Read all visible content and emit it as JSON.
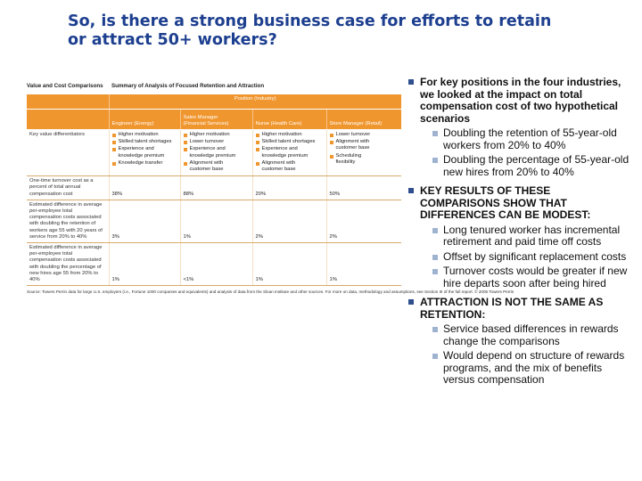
{
  "slide": {
    "title_lines": [
      "So, is there a strong business case for efforts to retain",
      "or attract 50+ workers?"
    ]
  },
  "figure": {
    "section_label": "Value and Cost Comparisons",
    "title": "Summary of Analysis of Focused Retention and Attraction",
    "group_header": "Position (Industry)",
    "columns": [
      {
        "line1": "",
        "line2": "Engineer (Energy)"
      },
      {
        "line1": "Sales Manager",
        "line2": "(Financial Services)"
      },
      {
        "line1": "",
        "line2": "Nurse (Health Care)"
      },
      {
        "line1": "",
        "line2": "Store Manager (Retail)"
      }
    ],
    "rows": [
      {
        "label": "Key value differentiators",
        "cells": [
          [
            "Higher motivation",
            "Skilled talent shortages",
            "Experience and",
            "knowledge premium",
            "Knowledge transfer"
          ],
          [
            "Higher motivation",
            "Lower turnover",
            "Experience and",
            "knowledge premium",
            "Alignment with",
            "customer base"
          ],
          [
            "Higher motivation",
            "Skilled talent shortages",
            "Experience and",
            "knowledge premium",
            "Alignment with",
            "customer base"
          ],
          [
            "Lower turnover",
            "Alignment with",
            "customer base",
            "Scheduling",
            "flexibility"
          ]
        ]
      },
      {
        "label": "One-time turnover cost as a percent of total annual compensation cost",
        "values": [
          "38%",
          "88%",
          "20%",
          "50%"
        ]
      },
      {
        "label": "Estimated difference in average per-employee total compensation costs associated with doubling the retention of workers age 55 with 20 years of service from 20% to 40%",
        "values": [
          "3%",
          "1%",
          "2%",
          "2%"
        ]
      },
      {
        "label": "Estimated difference in average per-employee total compensation costs associated with doubling the percentage of new hires age 55 from 20% to 40%",
        "values": [
          "1%",
          "<1%",
          "1%",
          "1%"
        ]
      }
    ],
    "source": "Source: Towers Perrin data for large U.S. employers (i.e., Fortune 1000 companies and equivalents) and analysis of data from the Sloan Institute and other sources. For more on data, methodology and assumptions, see Section III of the full report. © 2005 Towers Perrin"
  },
  "bullets": [
    {
      "lines": [
        "For key positions in the four industries,",
        "we looked at the impact on total",
        "compensation cost of two hypothetical",
        "scenarios"
      ],
      "subs": [
        {
          "lines": [
            "Doubling the retention of 55-year-old",
            "workers from 20% to 40%"
          ]
        },
        {
          "lines": [
            "Doubling the percentage of 55-year-old",
            "new hires from 20% to 40%"
          ]
        }
      ]
    },
    {
      "lines": [
        "KEY RESULTS OF THESE",
        "COMPARISONS SHOW THAT",
        "DIFFERENCES CAN BE MODEST:"
      ],
      "subs": [
        {
          "lines": [
            "Long tenured worker has incremental",
            "retirement and paid time off costs"
          ]
        },
        {
          "lines": [
            "Offset by significant replacement costs"
          ]
        },
        {
          "lines": [
            "Turnover costs would be greater if new",
            "hire departs soon after being hired"
          ]
        }
      ]
    },
    {
      "lines": [
        "ATTRACTION IS NOT THE SAME AS",
        "RETENTION:"
      ],
      "subs": [
        {
          "lines": [
            "Service based differences in rewards",
            "change the comparisons"
          ]
        },
        {
          "lines": [
            "Would depend on structure of rewards",
            "programs, and the mix of benefits",
            "versus compensation"
          ]
        }
      ]
    }
  ],
  "colors": {
    "title": "#1d3f8f",
    "table_header": "#f0962e",
    "bullet_square": "#2f4f8f",
    "sub_bullet_square": "#9fb3d1"
  }
}
